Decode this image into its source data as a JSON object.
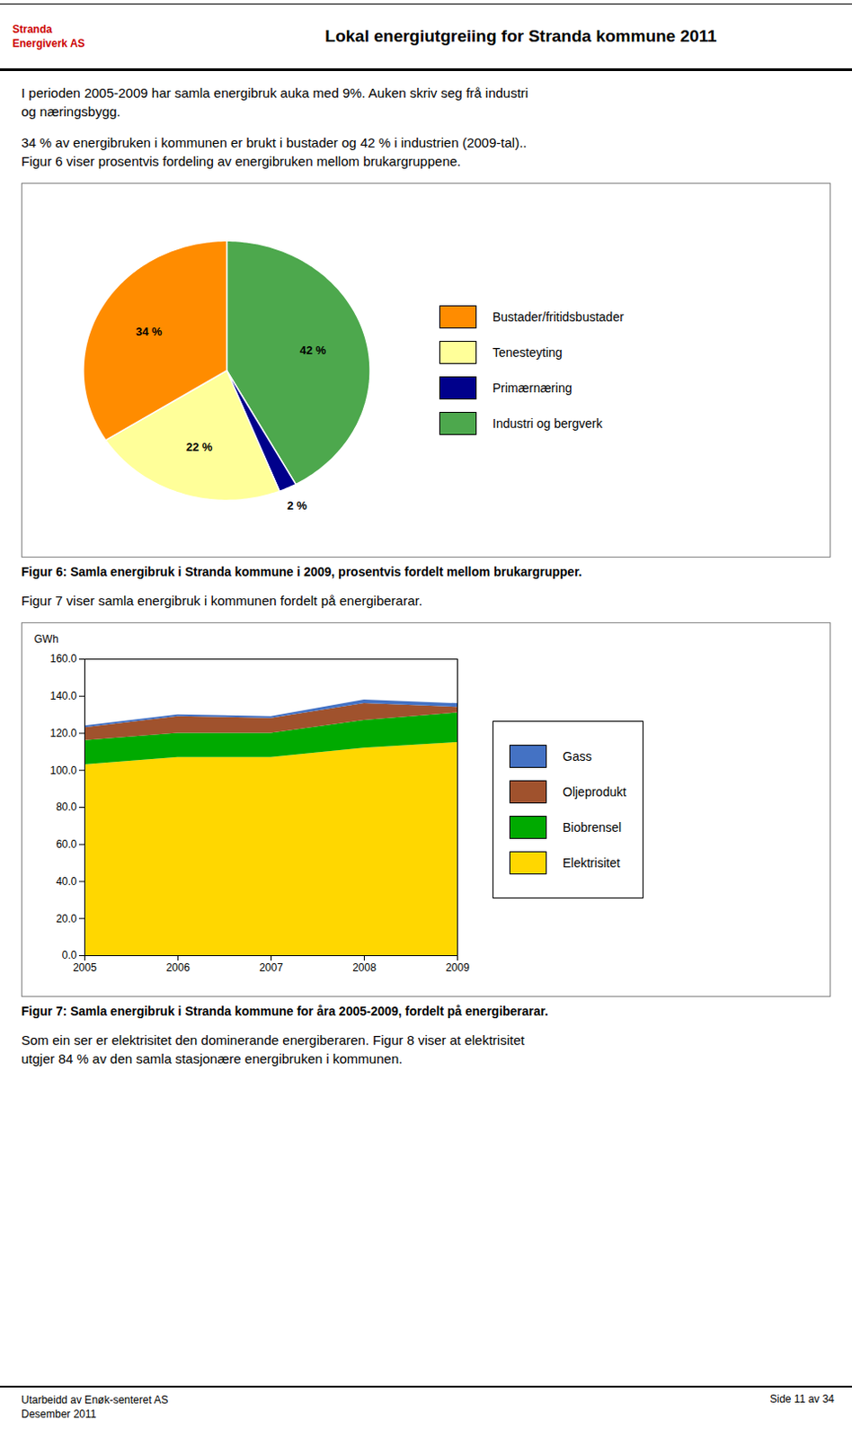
{
  "title": "Lokal energiutgreiing for Stranda kommune 2011",
  "logo": [
    "Stranda",
    "Energiverk AS"
  ],
  "intro": [
    "I perioden 2005-2009 har samla energibruk auka med 9%. Auken skriv seg frå industri\nog næringsbygg.",
    "34 % av energibruken i kommunen er brukt i bustader og 42 % i industrien (2009-tal)..\nFigur 6 viser prosentvis fordeling av energibruken mellom brukargruppene."
  ],
  "between": "Figur 7 viser samla energibruk i kommunen fordelt på energiberarar.",
  "outro": "Som ein ser er elektrisitet den dominerande energiberaren. Figur 8 viser at elektrisitet\nutgjer 84 % av den samla stasjonære energibruken i kommunen.",
  "footer": [
    "Utarbeidd av Enøk-senteret AS\nDesember 2011",
    "Side 11 av 34"
  ],
  "chart_data": [
    {
      "type": "pie",
      "caption": "Figur 6: Samla energibruk i Stranda kommune i 2009, prosentvis fordelt mellom brukargrupper.",
      "categories": [
        "Industri og bergverk",
        "Primærnæring",
        "Tenesteyting",
        "Bustader/fritidsbustader"
      ],
      "values": [
        42,
        2,
        22,
        34
      ],
      "value_labels": [
        "42 %",
        "2 %",
        "22 %",
        "34 %"
      ],
      "colors": [
        "#4DA84D",
        "#00008B",
        "#FFFF99",
        "#FF8C00"
      ],
      "data_labels": true
    },
    {
      "type": "area",
      "stacked": true,
      "caption": "Figur 7: Samla energibruk i Stranda kommune for åra 2005-2009, fordelt på energiberarar.",
      "ylabel": "GWh",
      "x": [
        2005,
        2006,
        2007,
        2008,
        2009
      ],
      "xlim": [
        2005,
        2009
      ],
      "xticks": [
        2005,
        2006,
        2007,
        2008,
        2009
      ],
      "ylim": [
        0,
        160
      ],
      "yticks": [
        {
          "value": 0,
          "label": "0.0"
        },
        {
          "value": 20,
          "label": "20.0"
        },
        {
          "value": 40,
          "label": "40.0"
        },
        {
          "value": 60,
          "label": "60.0"
        },
        {
          "value": 80,
          "label": "80.0"
        },
        {
          "value": 100,
          "label": "100.0"
        },
        {
          "value": 120,
          "label": "120.0"
        },
        {
          "value": 140,
          "label": "140.0"
        },
        {
          "value": 160,
          "label": "160.0"
        }
      ],
      "series": [
        {
          "name": "Elektrisitet",
          "color": "#FFD700",
          "values": [
            103,
            107,
            107,
            112,
            115
          ]
        },
        {
          "name": "Biobrensel",
          "color": "#00AA00",
          "values": [
            13,
            13,
            13,
            15,
            16
          ]
        },
        {
          "name": "Oljeprodukt",
          "color": "#A0522D",
          "values": [
            7,
            9,
            8,
            9,
            3
          ]
        },
        {
          "name": "Gass",
          "color": "#4472C4",
          "values": [
            1,
            1,
            1,
            2,
            2
          ]
        }
      ]
    }
  ]
}
